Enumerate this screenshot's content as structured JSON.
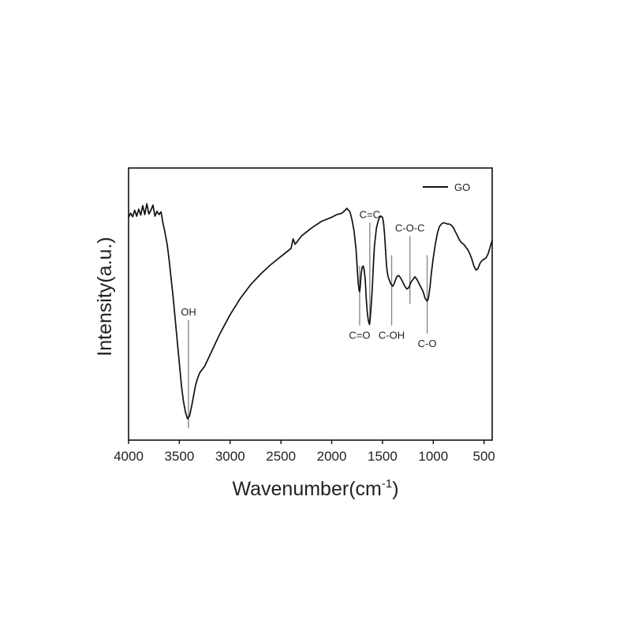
{
  "chart_data": {
    "type": "line",
    "xlabel": "Wavenumber(cm",
    "xlabel_sup": "-1",
    "xlabel_close": ")",
    "ylabel": "Intensity(a.u.)",
    "xlim": [
      4000,
      420
    ],
    "x_reversed": true,
    "ylim": [
      0,
      100
    ],
    "y_ticks_shown": false,
    "grid": false,
    "legend_position": "top-right",
    "x_ticks": [
      {
        "value": 4000,
        "label": "4000"
      },
      {
        "value": 3500,
        "label": "3500"
      },
      {
        "value": 3000,
        "label": "3000"
      },
      {
        "value": 2500,
        "label": "2500"
      },
      {
        "value": 2000,
        "label": "2000"
      },
      {
        "value": 1500,
        "label": "1500"
      },
      {
        "value": 1000,
        "label": "1000"
      },
      {
        "value": 500,
        "label": "500"
      }
    ],
    "series": [
      {
        "name": "GO",
        "color": "#111111",
        "x": [
          4000,
          3980,
          3960,
          3940,
          3920,
          3900,
          3880,
          3860,
          3840,
          3820,
          3800,
          3780,
          3760,
          3740,
          3720,
          3700,
          3680,
          3660,
          3650,
          3640,
          3620,
          3600,
          3580,
          3560,
          3540,
          3520,
          3500,
          3480,
          3460,
          3440,
          3420,
          3400,
          3380,
          3360,
          3340,
          3320,
          3300,
          3250,
          3200,
          3150,
          3100,
          3000,
          2900,
          2800,
          2700,
          2600,
          2500,
          2450,
          2400,
          2380,
          2370,
          2360,
          2340,
          2300,
          2200,
          2100,
          2000,
          1950,
          1900,
          1870,
          1850,
          1820,
          1800,
          1780,
          1760,
          1750,
          1740,
          1730,
          1725,
          1720,
          1710,
          1700,
          1690,
          1680,
          1670,
          1660,
          1650,
          1640,
          1630,
          1625,
          1620,
          1610,
          1600,
          1590,
          1580,
          1560,
          1540,
          1520,
          1500,
          1490,
          1480,
          1470,
          1460,
          1450,
          1440,
          1430,
          1420,
          1410,
          1400,
          1390,
          1380,
          1360,
          1340,
          1320,
          1300,
          1280,
          1260,
          1240,
          1230,
          1220,
          1200,
          1180,
          1160,
          1140,
          1120,
          1100,
          1080,
          1060,
          1050,
          1040,
          1030,
          1020,
          1000,
          980,
          960,
          940,
          920,
          900,
          880,
          860,
          840,
          820,
          800,
          780,
          760,
          740,
          720,
          700,
          680,
          660,
          640,
          620,
          600,
          580,
          560,
          540,
          520,
          500,
          480,
          460,
          440,
          420
        ],
        "y": [
          78.0,
          79.5,
          78.2,
          80.6,
          78.4,
          81.0,
          78.8,
          82.3,
          79.0,
          83.0,
          79.2,
          80.6,
          82.5,
          78.4,
          80.2,
          79.0,
          80.0,
          75.5,
          74.0,
          72.0,
          68.0,
          62.0,
          55.0,
          48.0,
          40.0,
          32.0,
          24.0,
          16.0,
          10.0,
          6.0,
          3.5,
          4.5,
          8.0,
          12.0,
          16.0,
          18.5,
          20.5,
          23.0,
          27.0,
          31.0,
          35.0,
          42.0,
          48.0,
          53.0,
          57.0,
          60.5,
          63.5,
          65.0,
          66.5,
          70.0,
          69.0,
          68.0,
          69.0,
          71.0,
          74.0,
          76.5,
          78.0,
          79.0,
          79.5,
          80.5,
          81.3,
          80.0,
          77.0,
          73.0,
          66.0,
          60.0,
          54.0,
          51.0,
          50.5,
          52.0,
          57.0,
          59.5,
          60.0,
          58.5,
          55.0,
          48.0,
          43.0,
          40.0,
          38.5,
          39.0,
          41.0,
          46.0,
          52.0,
          60.0,
          67.0,
          74.0,
          77.0,
          78.5,
          78.0,
          76.0,
          72.0,
          66.0,
          60.0,
          57.0,
          55.5,
          54.5,
          53.5,
          53.0,
          52.5,
          53.0,
          54.0,
          56.0,
          56.5,
          55.5,
          54.0,
          52.5,
          51.5,
          52.0,
          53.0,
          54.0,
          55.0,
          56.0,
          55.0,
          53.5,
          52.0,
          50.5,
          48.0,
          47.0,
          47.8,
          50.0,
          53.0,
          57.0,
          63.0,
          68.0,
          72.0,
          74.5,
          75.5,
          76.0,
          75.8,
          75.5,
          75.5,
          75.0,
          74.0,
          72.5,
          71.0,
          69.5,
          68.5,
          68.0,
          67.0,
          66.0,
          64.5,
          62.5,
          60.0,
          58.5,
          59.0,
          61.0,
          62.0,
          62.5,
          63.0,
          64.5,
          67.0,
          69.5
        ]
      }
    ],
    "legend": [
      {
        "label": "GO",
        "color": "#111111"
      }
    ],
    "annotations": [
      {
        "label": "OH",
        "x": 3410,
        "label_side": "top",
        "line_from": 0,
        "line_to": 40
      },
      {
        "label": "C=O",
        "x": 1725,
        "label_side": "bottom",
        "line_from": 38,
        "line_to": 60
      },
      {
        "label": "C=C",
        "x": 1625,
        "label_side": "top",
        "line_from": 38,
        "line_to": 76
      },
      {
        "label": "C-OH",
        "x": 1410,
        "label_side": "bottom",
        "line_from": 38,
        "line_to": 64
      },
      {
        "label": "C-O-C",
        "x": 1230,
        "label_side": "top",
        "line_from": 46,
        "line_to": 71
      },
      {
        "label": "C-O",
        "x": 1060,
        "label_side": "bottom",
        "line_from": 35,
        "line_to": 64
      }
    ]
  }
}
